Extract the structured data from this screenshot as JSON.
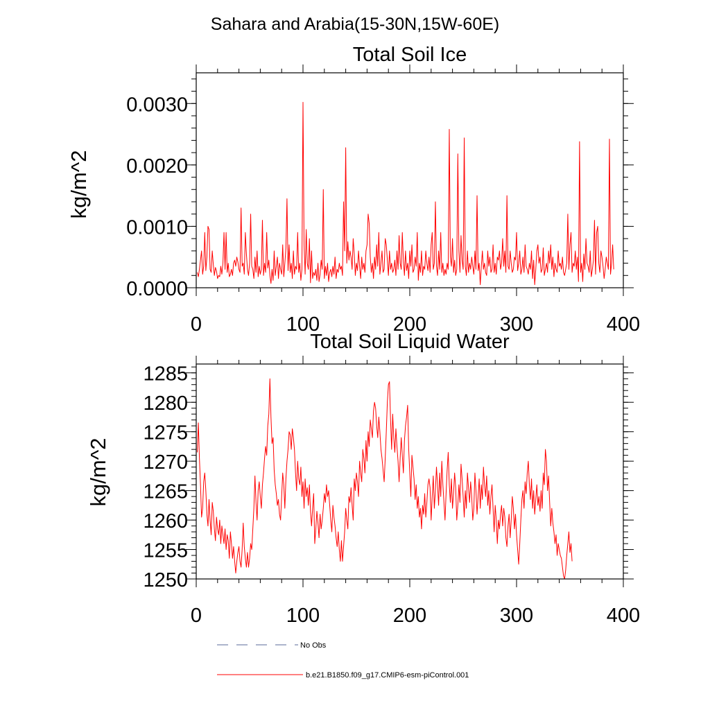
{
  "page": {
    "title": "Sahara and Arabia(15-30N,15W-60E)"
  },
  "chart_data": [
    {
      "type": "line",
      "title": "Total Soil Ice",
      "ylabel": "kg/m^2",
      "xlabel": "",
      "xlim": [
        0,
        400
      ],
      "ylim": [
        0,
        0.0035
      ],
      "xticks": [
        0,
        100,
        200,
        300,
        400
      ],
      "yticks": [
        0.0,
        0.001,
        0.002,
        0.003
      ],
      "ytick_labels": [
        "0.0000",
        "0.0010",
        "0.0020",
        "0.0030"
      ],
      "series": [
        {
          "color": "#ff0000",
          "x_start": 1,
          "values": [
            0.00025,
            0.00018,
            0.0003,
            0.00045,
            0.0006,
            0.00022,
            0.00035,
            0.0009,
            0.00028,
            0.0005,
            0.001,
            0.00095,
            0.0003,
            0.00025,
            0.0006,
            0.00038,
            0.0002,
            0.00033,
            0.00027,
            0.00015,
            0.0002,
            0.00018,
            0.00035,
            0.00022,
            0.0004,
            0.0009,
            0.0003,
            0.0009,
            0.00025,
            0.0004,
            0.00018,
            0.00022,
            0.0003,
            0.0002,
            0.0004,
            0.00045,
            0.00035,
            0.0005,
            0.00042,
            0.0003,
            0.00025,
            0.0013,
            0.00035,
            0.0004,
            0.00022,
            0.0009,
            0.00055,
            0.0003,
            0.0002,
            0.0004,
            0.0012,
            0.00035,
            0.0003,
            0.00015,
            0.0005,
            0.00025,
            0.0006,
            0.00018,
            0.00035,
            0.00022,
            0.0003,
            0.0011,
            0.0002,
            0.0004,
            0.00025,
            0.0009,
            0.00032,
            0.00045,
            0.0002,
            7e-05,
            0.0003,
            0.00012,
            0.0006,
            0.0002,
            0.00035,
            0.0005,
            0.00015,
            0.0004,
            0.0003,
            0.00022,
            0.0007,
            0.00018,
            0.0004,
            0.00065,
            0.00145,
            0.00028,
            0.0007,
            0.00025,
            0.0004,
            0.00015,
            0.0006,
            0.00022,
            0.00035,
            0.0003,
            0.0009,
            0.00025,
            0.0004,
            0.00012,
            0.0003,
            0.00302,
            0.0007,
            0.00022,
            0.00095,
            0.0004,
            0.0003,
            0.0008,
            8e-05,
            0.0006,
            0.00015,
            0.00025,
            0.0002,
            0.0003,
            0.00012,
            0.0004,
            0.0001,
            0.00022,
            0.00045,
            0.0003,
            0.0016,
            0.00015,
            0.00035,
            0.0002,
            0.0004,
            0.0001,
            0.00025,
            0.0003,
            0.00018,
            0.00035,
            0.00022,
            0.0005,
            0.00015,
            0.0003,
            0.00025,
            0.0004,
            0.0003,
            0.00035,
            0.0002,
            0.0014,
            0.0006,
            0.00228,
            0.0004,
            0.00075,
            0.00045,
            0.0006,
            0.0005,
            0.0003,
            0.0008,
            0.00055,
            0.0002,
            0.0004,
            0.00028,
            0.0006,
            0.00035,
            0.00015,
            0.0005,
            0.0003,
            0.0004,
            0.00025,
            0.0006,
            0.0007,
            0.0012,
            0.00105,
            0.0005,
            0.00025,
            0.0004,
            0.00015,
            0.0005,
            0.0003,
            0.0007,
            0.00035,
            0.0009,
            0.00022,
            0.0004,
            0.0006,
            0.00025,
            0.0003,
            0.0008,
            0.0007,
            0.00045,
            0.0002,
            0.0006,
            0.0003,
            0.0004,
            0.00025,
            0.0003,
            0.00045,
            0.0002,
            0.0006,
            0.0003,
            0.00085,
            0.0004,
            0.0003,
            0.0009,
            0.00045,
            0.0002,
            0.0006,
            0.00028,
            0.0004,
            0.00015,
            0.0006,
            0.00035,
            0.0007,
            0.00025,
            0.0003,
            0.0005,
            0.00035,
            0.0009,
            0.00012,
            0.0004,
            0.00025,
            0.0006,
            0.0002,
            0.00035,
            0.0003,
            0.0006,
            0.0004,
            0.00028,
            0.0005,
            0.00025,
            0.0007,
            0.0009,
            0.0003,
            0.0004,
            0.0014,
            0.00035,
            0.0002,
            0.0006,
            0.0003,
            0.0009,
            0.00025,
            0.0004,
            0.0002,
            0.0003,
            0.00022,
            0.0004,
            0.0003,
            0.00258,
            0.0005,
            0.00035,
            0.0008,
            0.00025,
            0.00045,
            0.0002,
            0.0003,
            0.00218,
            0.0006,
            0.00025,
            0.00085,
            0.00045,
            0.0003,
            0.00244,
            0.00035,
            0.0002,
            0.0006,
            0.00025,
            0.0004,
            0.0003,
            0.0005,
            0.00035,
            0.00022,
            0.0006,
            0.0003,
            0.0015,
            0.00028,
            0.0004,
            5e-05,
            0.00035,
            0.0006,
            0.0003,
            0.0004,
            0.00025,
            0.0002,
            0.0006,
            0.00035,
            0.0005,
            0.00025,
            0.0003,
            0.0007,
            0.00025,
            0.0004,
            0.00022,
            0.0005,
            0.00045,
            0.0006,
            0.0003,
            0.0004,
            0.0008,
            0.00035,
            0.0006,
            0.00025,
            0.0015,
            0.00035,
            0.0003,
            0.0006,
            0.0004,
            0.00025,
            0.0003,
            0.0005,
            0.00045,
            0.0009,
            0.00028,
            0.0004,
            0.0006,
            0.00022,
            0.0003,
            0.0005,
            0.00025,
            0.0007,
            0.00035,
            0.0003,
            0.00022,
            0.0004,
            0.0003,
            0.0006,
            0.00015,
            0.00045,
            5e-05,
            0.0003,
            0.0006,
            0.0007,
            0.0004,
            0.0005,
            0.00025,
            0.0003,
            0.00065,
            0.0002,
            0.0003,
            0.0004,
            0.00025,
            0.0006,
            0.0004,
            0.0007,
            0.0003,
            0.0005,
            0.00018,
            0.0004,
            0.0003,
            0.00025,
            0.0006,
            0.00035,
            0.0004,
            0.0003,
            0.0005,
            0.00025,
            0.0002,
            0.0003,
            0.0004,
            0.0012,
            0.0003,
            0.0007,
            0.0009,
            0.00025,
            0.0004,
            0.00035,
            0.0006,
            0.0003,
            0.0005,
            0.0001,
            0.00238,
            0.00025,
            0.0004,
            0.0001,
            0.00055,
            0.0003,
            0.0008,
            0.0004,
            0.00035,
            0.00025,
            0.0006,
            0.00018,
            0.0003,
            0.00045,
            0.0011,
            0.00022,
            0.0009,
            0.001,
            0.0004,
            0.00025,
            0.0006,
            0.0005,
            0.00035,
            0.00015,
            0.0003,
            0.0005,
            0.0004,
            0.0003,
            0.00242,
            0.00022,
            0.0004,
            0.0007,
            0.0003
          ]
        }
      ]
    },
    {
      "type": "line",
      "title": "Total Soil Liquid Water",
      "ylabel": "kg/m^2",
      "xlabel": "",
      "xlim": [
        0,
        400
      ],
      "ylim": [
        1250,
        1286.5
      ],
      "xticks": [
        0,
        100,
        200,
        300,
        400
      ],
      "yticks": [
        1250,
        1255,
        1260,
        1265,
        1270,
        1275,
        1280,
        1285
      ],
      "ytick_labels": [
        "1250",
        "1255",
        "1260",
        "1265",
        "1270",
        "1275",
        "1280",
        "1285"
      ],
      "series": [
        {
          "color": "#ff0000",
          "x_start": 1,
          "values": [
            1271.5,
            1276.5,
            1270.5,
            1266,
            1260.5,
            1262,
            1266.5,
            1268,
            1265,
            1261,
            1259,
            1263.5,
            1260,
            1257.5,
            1263,
            1261.5,
            1258.5,
            1256.5,
            1260.5,
            1258.5,
            1257.5,
            1260,
            1256,
            1259,
            1257.5,
            1256,
            1258.5,
            1255,
            1257.5,
            1256.5,
            1253.5,
            1258,
            1256,
            1253.5,
            1255.5,
            1253,
            1251,
            1253,
            1254.5,
            1255.5,
            1253,
            1252,
            1255,
            1259.5,
            1255.5,
            1253.5,
            1252,
            1254.5,
            1252,
            1253.5,
            1256,
            1255,
            1258.5,
            1262,
            1267.5,
            1263,
            1260,
            1265,
            1266.5,
            1264,
            1262,
            1266,
            1268,
            1270.5,
            1272.5,
            1271,
            1276,
            1278,
            1284,
            1277.5,
            1273,
            1274,
            1268.5,
            1266,
            1264.5,
            1262.5,
            1263.5,
            1261,
            1260,
            1264,
            1268,
            1266,
            1262,
            1267,
            1270,
            1272,
            1275,
            1274.5,
            1272,
            1275.5,
            1274,
            1272,
            1268,
            1265,
            1270,
            1267,
            1266,
            1269,
            1264,
            1266.5,
            1262,
            1267,
            1264,
            1265.5,
            1262.5,
            1266,
            1261.5,
            1259,
            1262,
            1264.5,
            1256,
            1258.5,
            1261.5,
            1259.5,
            1257,
            1261,
            1258.5,
            1260,
            1262,
            1264.5,
            1263,
            1266,
            1264,
            1265,
            1262.5,
            1260,
            1258,
            1262.5,
            1260.5,
            1259,
            1257,
            1255.5,
            1258,
            1255,
            1253,
            1256.5,
            1253,
            1255.5,
            1258,
            1262,
            1260,
            1258.5,
            1264,
            1263,
            1265.5,
            1262.5,
            1260,
            1267,
            1265,
            1268,
            1266.5,
            1264,
            1270,
            1268,
            1266.5,
            1272,
            1270.5,
            1268,
            1273.5,
            1270,
            1275,
            1272.5,
            1277,
            1275.5,
            1274,
            1278.5,
            1280,
            1279,
            1276,
            1274,
            1277.5,
            1275,
            1272,
            1270.5,
            1268.5,
            1266.5,
            1270.5,
            1275,
            1280,
            1283,
            1283.5,
            1277,
            1272,
            1278,
            1274,
            1271.5,
            1275.5,
            1272.5,
            1270,
            1266.5,
            1270.5,
            1274,
            1271,
            1268,
            1273.5,
            1276,
            1277.5,
            1279.5,
            1272,
            1268,
            1264,
            1271,
            1269,
            1267,
            1263.5,
            1266,
            1262,
            1264,
            1260.5,
            1262,
            1258.5,
            1262.5,
            1261,
            1264.5,
            1260.5,
            1263,
            1266,
            1267,
            1265.5,
            1260,
            1264,
            1267.5,
            1262,
            1265,
            1269,
            1266,
            1262.5,
            1268,
            1264,
            1270,
            1266,
            1263,
            1260,
            1264.5,
            1268.5,
            1271.5,
            1266,
            1263,
            1267,
            1262,
            1264.5,
            1268,
            1265.5,
            1260,
            1262.5,
            1266,
            1263,
            1269.5,
            1267,
            1264,
            1260.5,
            1265,
            1262,
            1268,
            1265.5,
            1263,
            1266.5,
            1264,
            1260,
            1262,
            1268,
            1265,
            1261,
            1264,
            1267,
            1262,
            1266,
            1263.5,
            1269,
            1266,
            1264,
            1267.5,
            1262.5,
            1265,
            1261,
            1264,
            1266,
            1262,
            1258,
            1262.5,
            1260,
            1256,
            1260,
            1258.5,
            1261,
            1262.5,
            1259,
            1262,
            1260.5,
            1257,
            1255.5,
            1259,
            1261,
            1257,
            1260,
            1264,
            1262,
            1258.5,
            1261,
            1257.5,
            1255,
            1252.5,
            1256,
            1260,
            1263.5,
            1265,
            1262,
            1266.5,
            1264.5,
            1268,
            1270,
            1266,
            1263.5,
            1267,
            1262,
            1265,
            1261,
            1263.5,
            1266,
            1262.5,
            1264,
            1261.5,
            1265,
            1262,
            1268,
            1266,
            1272,
            1270,
            1265,
            1267.5,
            1263,
            1259,
            1262,
            1259.5,
            1258,
            1256,
            1257.5,
            1254,
            1256,
            1255,
            1254,
            1253.5,
            1252,
            1250.5,
            1250,
            1251.5,
            1254,
            1256,
            1258,
            1254.5,
            1256,
            1253
          ]
        }
      ]
    }
  ],
  "legend": {
    "items": [
      {
        "label": "No Obs",
        "style": "dashed",
        "color": "#5a6a9a"
      },
      {
        "label": "b.e21.B1850.f09_g17.CMIP6-esm-piControl.001",
        "style": "solid",
        "color": "#ff0000"
      }
    ]
  }
}
